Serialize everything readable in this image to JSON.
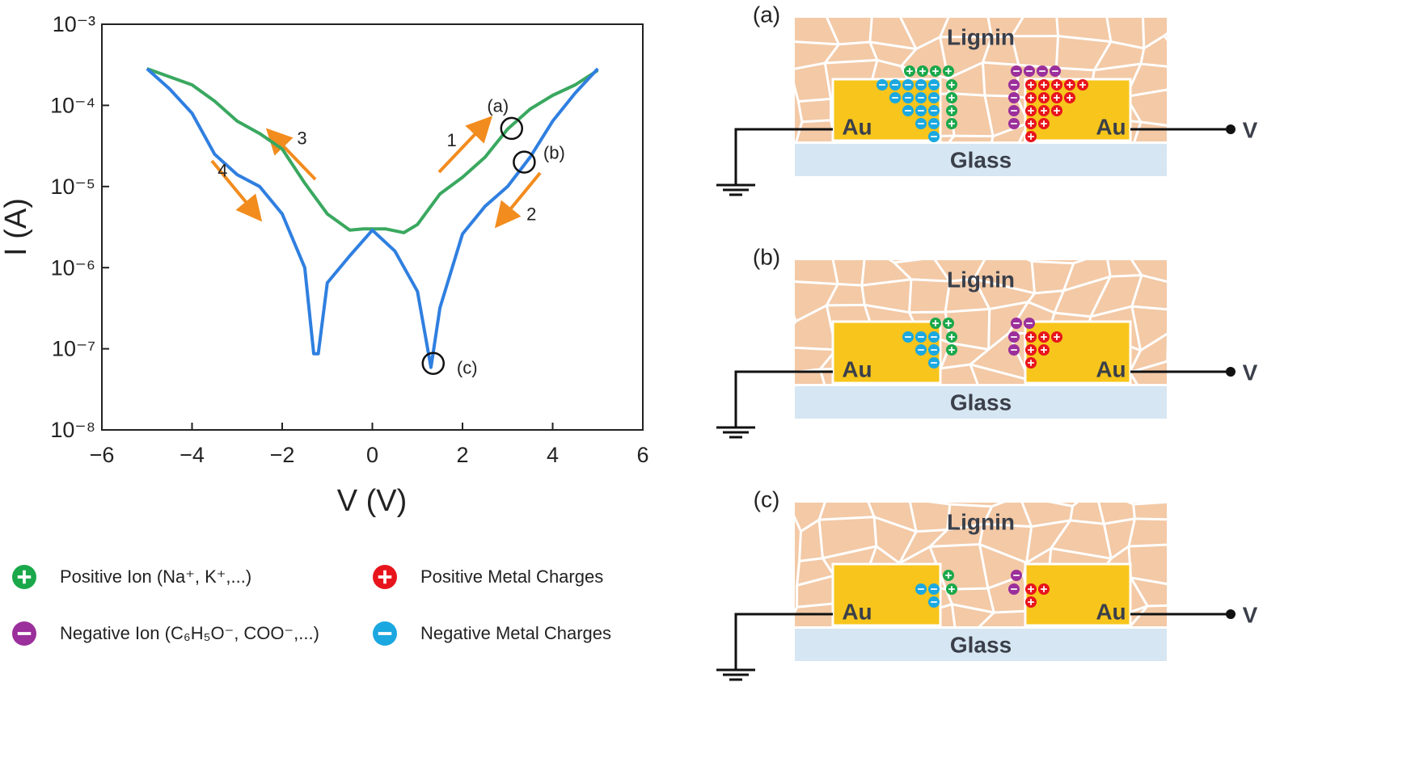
{
  "chart_data": {
    "type": "line",
    "xlabel": "V (V)",
    "ylabel": "I (A)",
    "xlim": [
      -6,
      6
    ],
    "xticks": [
      {
        "value": -6,
        "label": "−6"
      },
      {
        "value": -4,
        "label": "−4"
      },
      {
        "value": -2,
        "label": "−2"
      },
      0,
      2,
      4,
      6
    ],
    "ylim": [
      1e-08,
      0.001
    ],
    "log_y": true,
    "yticks": [
      {
        "value": 1e-08,
        "label": "10⁻⁸"
      },
      {
        "value": 1e-07,
        "label": "10⁻⁷"
      },
      {
        "value": 1e-06,
        "label": "10⁻⁶"
      },
      {
        "value": 1e-05,
        "label": "10⁻⁵"
      },
      {
        "value": 0.0001,
        "label": "10⁻⁴"
      },
      {
        "value": 0.001,
        "label": "10⁻³"
      }
    ],
    "series": [
      {
        "color": "#3aa860",
        "x": [
          -5,
          -4.5,
          -4,
          -3.5,
          -3,
          -2.5,
          -2,
          -1.5,
          -1,
          -0.5,
          -0.2,
          0.3,
          0.7,
          1,
          1.5,
          2,
          2.5,
          3,
          3.5,
          4,
          4.5,
          5
        ],
        "values": [
          0.000283,
          0.000225,
          0.000179,
          0.000113,
          6.4e-05,
          4.5e-05,
          2.9e-05,
          1.1e-05,
          4.6e-06,
          2.9e-06,
          3e-06,
          3e-06,
          2.7e-06,
          3.4e-06,
          8.1e-06,
          1.3e-05,
          2.3e-05,
          5.1e-05,
          9e-05,
          0.000133,
          0.000179,
          0.00027
        ]
      },
      {
        "color": "#2f7fe0",
        "x": [
          -5,
          -4.5,
          -4,
          -3.5,
          -3,
          -2.5,
          -2,
          -1.5,
          -1.3,
          -1.2,
          -1,
          -0.5,
          0,
          0.5,
          1,
          1.3,
          1.5,
          2,
          2.5,
          3,
          3.5,
          4,
          4.5,
          5
        ],
        "values": [
          0.000283,
          0.00016,
          8e-05,
          2.5e-05,
          1.4e-05,
          1e-05,
          4.6e-06,
          1e-06,
          8.7e-08,
          8.7e-08,
          6.5e-07,
          1.4e-06,
          2.9e-06,
          1.6e-06,
          5.1e-07,
          5.9e-08,
          3.2e-07,
          2.6e-06,
          5.7e-06,
          1e-05,
          2.3e-05,
          6.4e-05,
          0.000142,
          0.000283
        ]
      }
    ],
    "annotations": [
      {
        "text": "1",
        "x": 1.76,
        "y": 3.6e-05
      },
      {
        "text": "2",
        "x": 3.53,
        "y": 4.4e-06
      },
      {
        "text": "3",
        "x": -1.56,
        "y": 3.8e-05
      },
      {
        "text": "4",
        "x": -3.32,
        "y": 1.52e-05
      }
    ],
    "markers": [
      {
        "label": "(a)",
        "x": 3.09,
        "y": 5.2e-05
      },
      {
        "label": "(b)",
        "x": 3.37,
        "y": 2e-05
      },
      {
        "label": "(c)",
        "x": 1.35,
        "y": 6.6e-08
      }
    ]
  },
  "legend": [
    {
      "label": "Positive Ion (Na⁺, K⁺,...)",
      "color": "#1aa84b",
      "sign": "+"
    },
    {
      "label": "Positive Metal Charges",
      "color": "#e8141c",
      "sign": "+"
    },
    {
      "label": "Negative Ion (C₆H₅O⁻, COO⁻,...)",
      "color": "#9b2f9b",
      "sign": "−"
    },
    {
      "label": "Negative Metal Charges",
      "color": "#1ba8e0",
      "sign": "−"
    }
  ],
  "panels": [
    {
      "label": "(a)",
      "film": "Lignin",
      "electrodes": [
        "Au",
        "Au"
      ],
      "substrate": "Glass",
      "terminal": "V"
    },
    {
      "label": "(b)",
      "film": "Lignin",
      "electrodes": [
        "Au",
        "Au"
      ],
      "substrate": "Glass",
      "terminal": "V"
    },
    {
      "label": "(c)",
      "film": "Lignin",
      "electrodes": [
        "Au",
        "Au"
      ],
      "substrate": "Glass",
      "terminal": "V"
    }
  ]
}
